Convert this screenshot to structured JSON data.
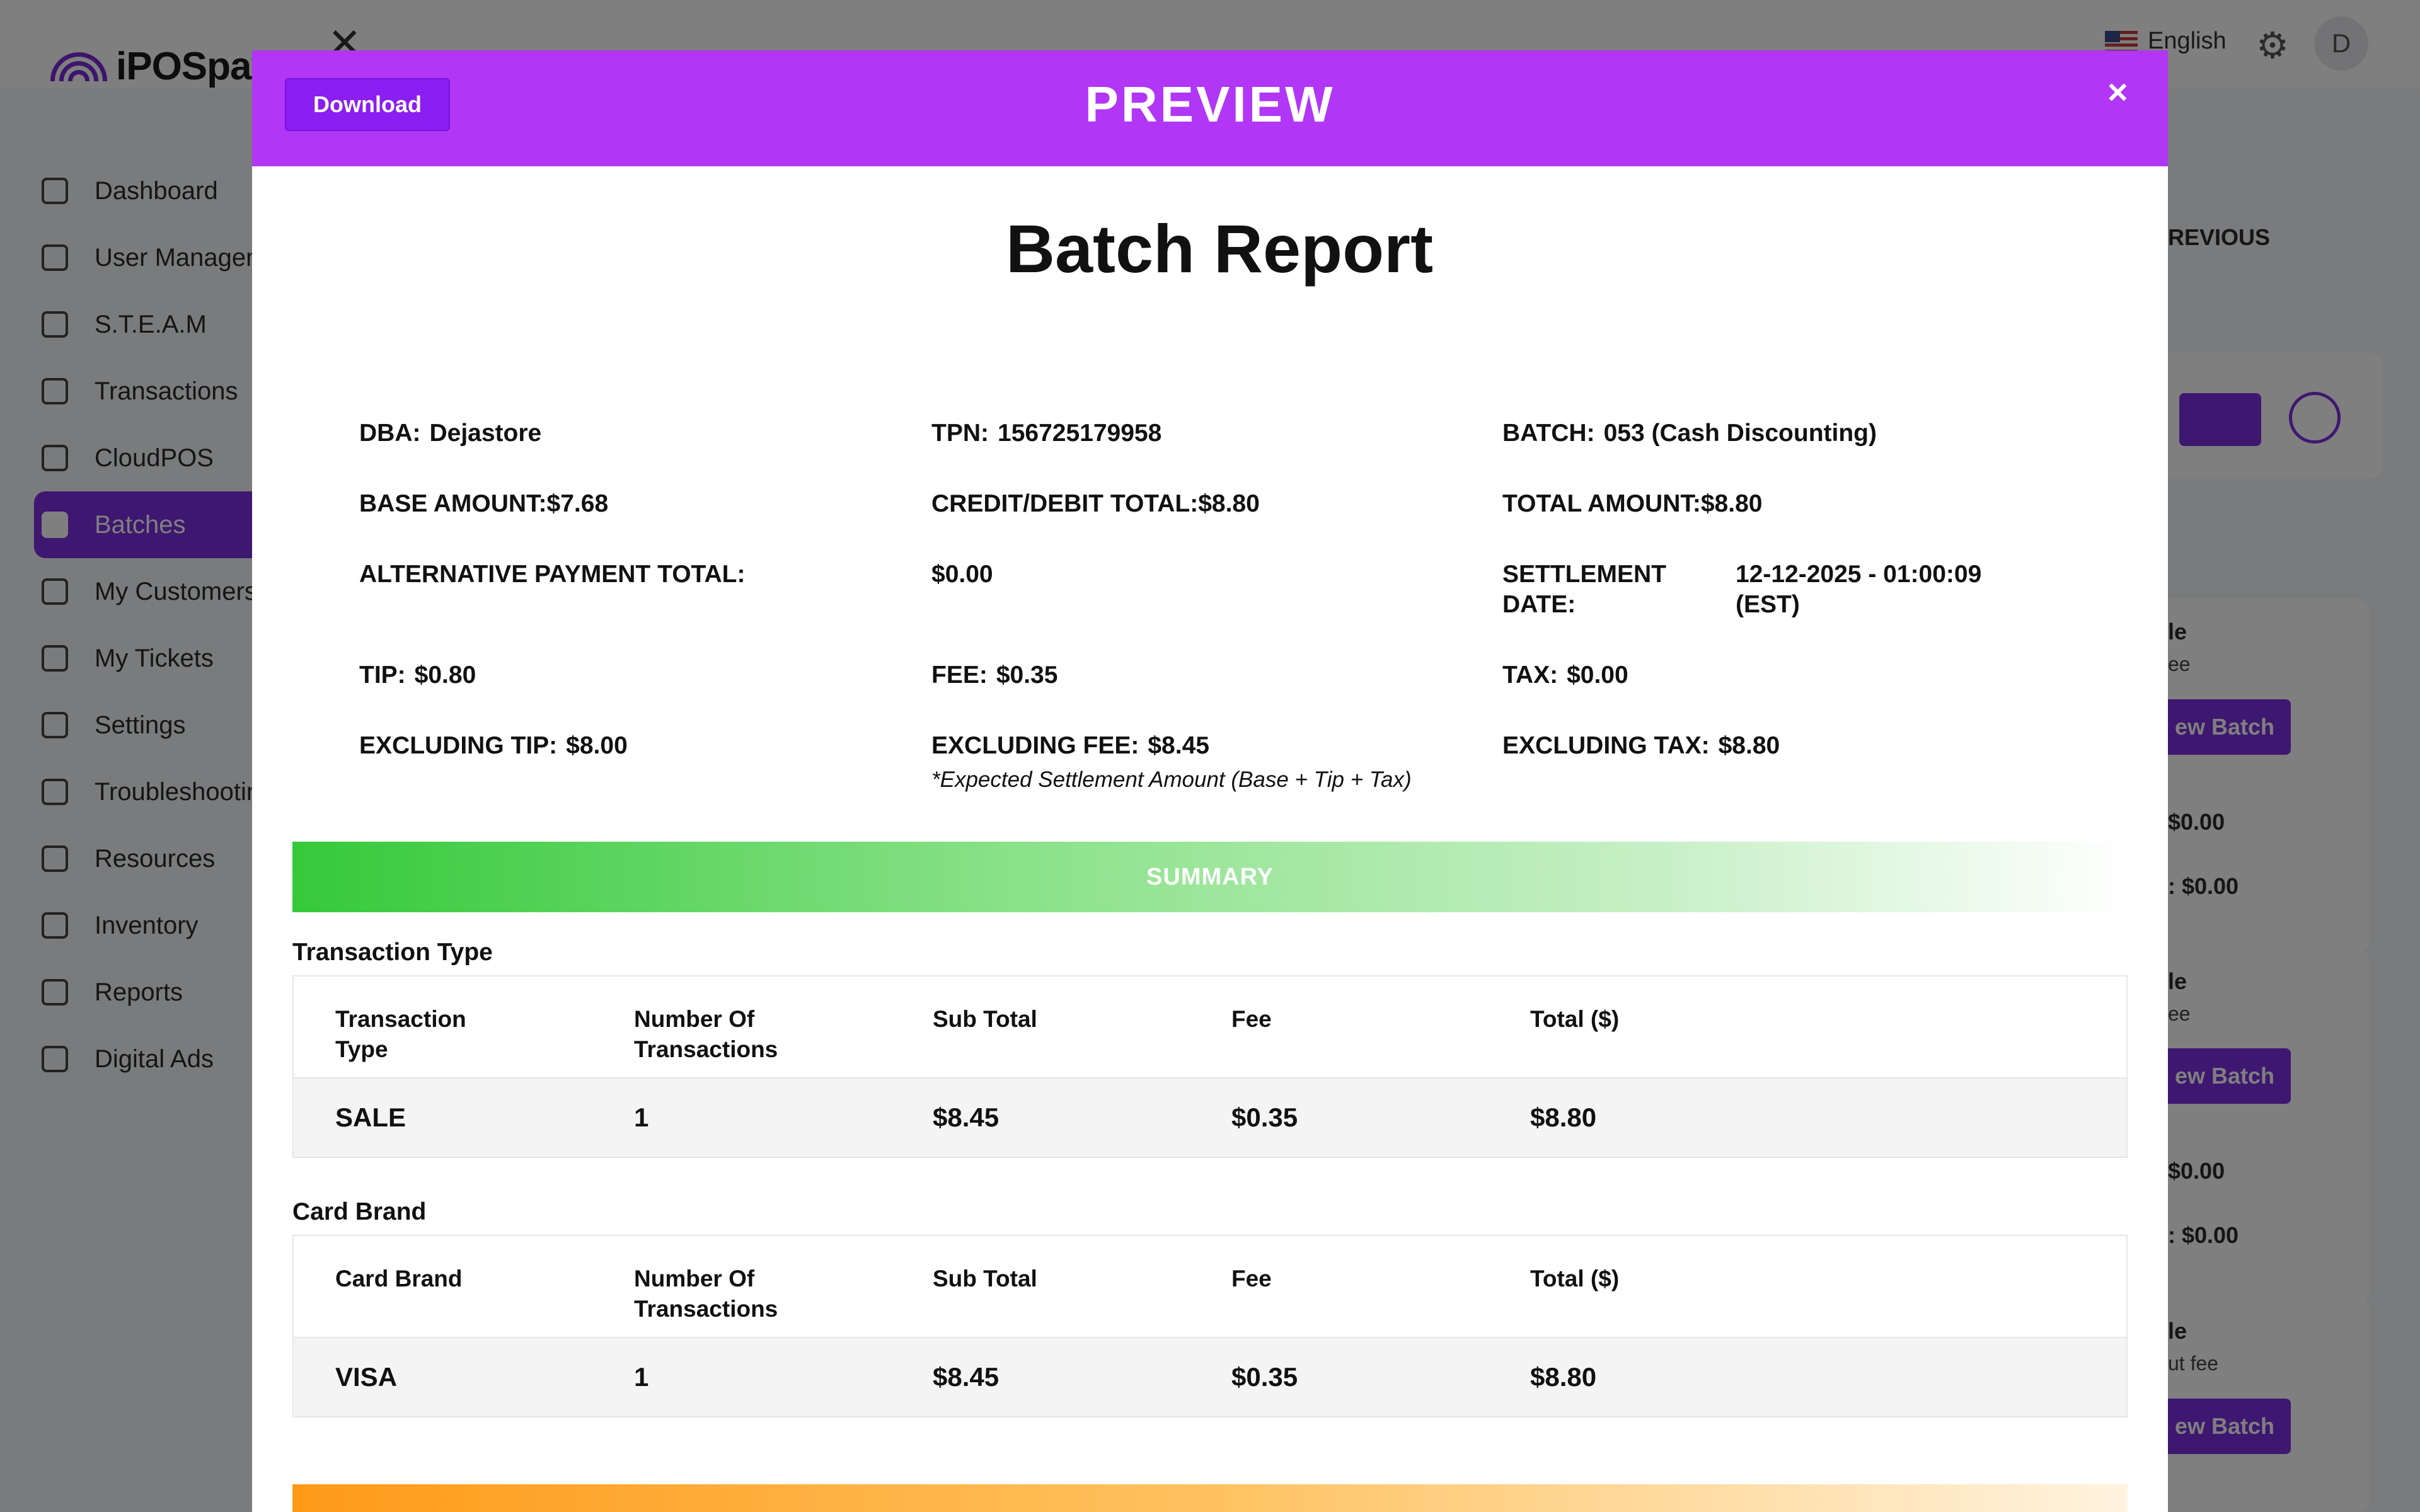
{
  "app": {
    "logo_text": "iPOSpay",
    "language": "English",
    "avatar_initial": "D",
    "sidebar": [
      {
        "label": "Dashboard"
      },
      {
        "label": "User Managen"
      },
      {
        "label": "S.T.E.A.M"
      },
      {
        "label": "Transactions"
      },
      {
        "label": "CloudPOS"
      },
      {
        "label": "Batches"
      },
      {
        "label": "My Customers"
      },
      {
        "label": "My Tickets"
      },
      {
        "label": "Settings"
      },
      {
        "label": "Troubleshootin"
      },
      {
        "label": "Resources"
      },
      {
        "label": "Inventory"
      },
      {
        "label": "Reports"
      },
      {
        "label": "Digital Ads"
      }
    ],
    "right_panel": {
      "previous_label": "REVIOUS",
      "cards": [
        {
          "title": "le",
          "sub": "ee",
          "button": "ew Batch",
          "val1": "$0.00",
          "val2": ": $0.00"
        },
        {
          "title": "le",
          "sub": "ee",
          "button": "ew Batch",
          "val1": "$0.00",
          "val2": ": $0.00"
        },
        {
          "title": "le",
          "sub": "ut fee",
          "button": "ew Batch"
        }
      ]
    }
  },
  "modal": {
    "download_label": "Download",
    "title": "PREVIEW",
    "close_symbol": "×",
    "report_title": "Batch Report",
    "details": {
      "dba": {
        "label": "DBA:",
        "value": "Dejastore"
      },
      "tpn": {
        "label": "TPN:",
        "value": "156725179958"
      },
      "batch": {
        "label": "BATCH:",
        "value": "053 (Cash Discounting)"
      },
      "base_amount": {
        "label": "BASE AMOUNT:",
        "value": "$7.68"
      },
      "credit_debit_total": {
        "label": "CREDIT/DEBIT TOTAL:",
        "value": "$8.80"
      },
      "total_amount": {
        "label": "TOTAL AMOUNT:",
        "value": "$8.80"
      },
      "alt_payment_total": {
        "label": "ALTERNATIVE PAYMENT TOTAL:",
        "value": "$0.00"
      },
      "settlement_date": {
        "label_line1": "SETTLEMENT",
        "label_line2": "DATE:",
        "value_line1": "12-12-2025 - 01:00:09",
        "value_line2": "(EST)"
      },
      "tip": {
        "label": "TIP:",
        "value": "$0.80"
      },
      "fee": {
        "label": "FEE:",
        "value": "$0.35"
      },
      "tax": {
        "label": "TAX:",
        "value": "$0.00"
      },
      "excluding_tip": {
        "label": "EXCLUDING TIP:",
        "value": "$8.00"
      },
      "excluding_fee": {
        "label": "EXCLUDING FEE:",
        "value": "$8.45"
      },
      "excluding_tax": {
        "label": "EXCLUDING TAX:",
        "value": "$8.80"
      },
      "expected_note": "*Expected Settlement Amount (Base + Tip + Tax)"
    },
    "summary_label": "SUMMARY",
    "transaction_type_section": {
      "label": "Transaction Type",
      "headers": [
        "Transaction Type",
        "Number Of Transactions",
        "Sub Total",
        "Fee",
        "Total ($)"
      ],
      "rows": [
        [
          "SALE",
          "1",
          "$8.45",
          "$0.35",
          "$8.80"
        ]
      ]
    },
    "card_brand_section": {
      "label": "Card Brand",
      "headers": [
        "Card Brand",
        "Number Of Transactions",
        "Sub Total",
        "Fee",
        "Total ($)"
      ],
      "rows": [
        [
          "VISA",
          "1",
          "$8.45",
          "$0.35",
          "$8.80"
        ]
      ]
    },
    "colors": {
      "header": "#b136f6",
      "download_button": "#8b1ef0",
      "summary_start": "#35c93a",
      "next_section_start": "#ff9a18",
      "brand_purple": "#7c2fe0"
    }
  }
}
